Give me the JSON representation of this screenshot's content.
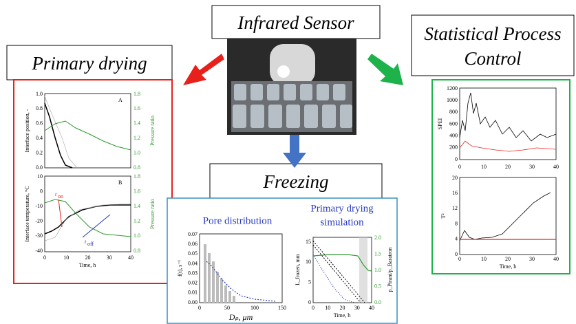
{
  "center": {
    "title": "Infrared Sensor"
  },
  "primary_drying": {
    "title": "Primary drying",
    "panel_a": {
      "label": "A",
      "y_label": "Interface position, -",
      "y2_label": "Pressure ratio",
      "yticks": [
        "1.0",
        "0.8",
        "0.6",
        "0.4",
        "0.2",
        "0.0"
      ],
      "y2ticks": [
        "1.8",
        "1.6",
        "1.4",
        "1.2",
        "1.0",
        "0.8"
      ]
    },
    "panel_b": {
      "label": "B",
      "y_label": "Interface temperature, °C",
      "y2_label": "Pressure ratio",
      "yticks": [
        "10",
        "0",
        "-10",
        "-20",
        "-30",
        "-40"
      ],
      "y2ticks": [
        "1.8",
        "1.6",
        "1.4",
        "1.2",
        "1.0",
        "0.8"
      ],
      "xticks": [
        "0",
        "10",
        "20",
        "30",
        "40"
      ],
      "x_label": "Time, h",
      "t_on": "t",
      "t_on_sub": "on",
      "t_off": "t",
      "t_off_sub": "off"
    }
  },
  "spc": {
    "title_line1": "Statistical Process",
    "title_line2": "Control",
    "spei": {
      "y_label": "SPEI",
      "yticks": [
        "1200",
        "1000",
        "800",
        "600",
        "400",
        "200",
        "0"
      ],
      "xticks": [
        "0",
        "10",
        "20",
        "30",
        "40"
      ]
    },
    "t2": {
      "y_label": "T²",
      "yticks": [
        "20",
        "16",
        "12",
        "8",
        "4",
        "0"
      ],
      "xticks": [
        "0",
        "10",
        "20",
        "30",
        "40"
      ],
      "x_label": "Time, h"
    }
  },
  "freezing": {
    "title": "Freezing",
    "pore": {
      "title": "Pore distribution",
      "y_label": "f(t), s⁻¹",
      "x_label": "Dₚ, μm",
      "yticks": [
        "0.07",
        "0.06",
        "0.05",
        "0.04",
        "0.03",
        "0.02",
        "0.01",
        "0.00"
      ],
      "xticks": [
        "0",
        "50",
        "100",
        "150"
      ]
    },
    "sim": {
      "title_line1": "Primary drying",
      "title_line2": "simulation",
      "y_label": "L_frozen, mm",
      "y2_label": "p_Pirani/p_Baratron",
      "yticks": [
        "15",
        "10",
        "5",
        "0"
      ],
      "y2ticks": [
        "2.0",
        "1.5",
        "1.0",
        "0.5",
        "0.0"
      ],
      "xticks": [
        "0",
        "10",
        "20",
        "30",
        "40"
      ],
      "x_label": "Time, h"
    }
  }
}
